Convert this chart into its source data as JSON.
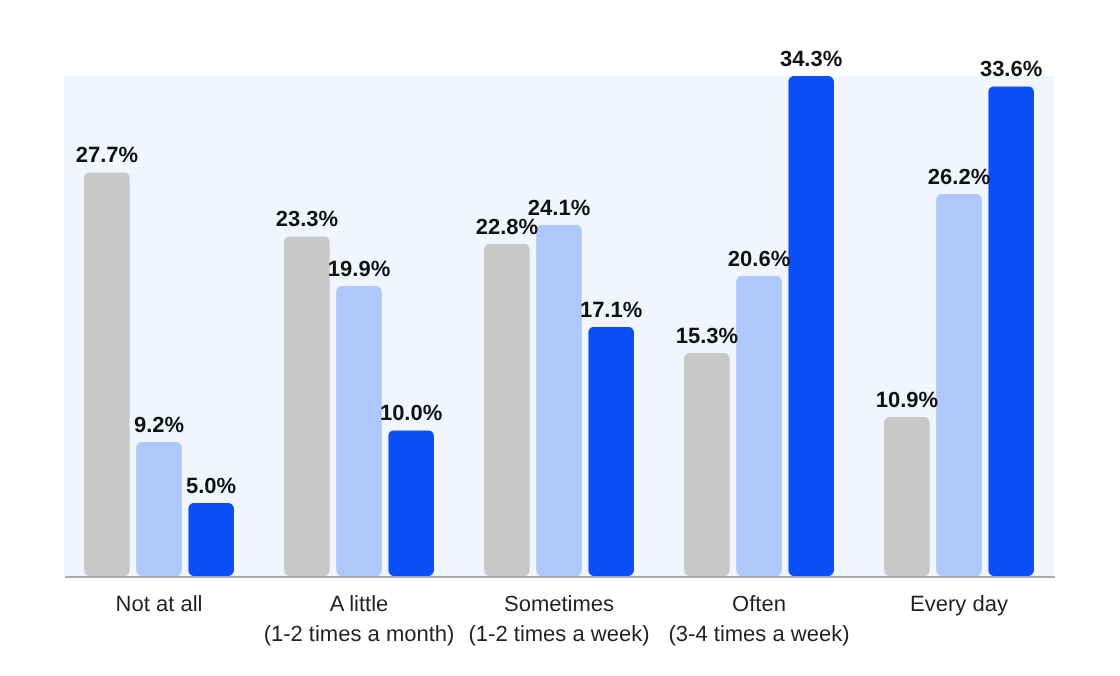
{
  "chart_data": {
    "type": "bar",
    "categories": [
      "Not at all",
      "A little\n(1-2 times a month)",
      "Sometimes\n(1-2 times a week)",
      "Often\n(3-4 times a week)",
      "Every day"
    ],
    "series": [
      {
        "color": "#c8c8c8",
        "values": [
          27.7,
          23.3,
          22.8,
          15.3,
          10.9
        ],
        "value_labels": [
          "27.7%",
          "23.3%",
          "22.8%",
          "15.3%",
          "10.9%"
        ]
      },
      {
        "color": "#aec8fa",
        "values": [
          9.2,
          19.9,
          24.1,
          20.6,
          26.2
        ],
        "value_labels": [
          "9.2%",
          "19.9%",
          "24.1%",
          "20.6%",
          "26.2%"
        ]
      },
      {
        "color": "#0a4ff5",
        "values": [
          5.0,
          10.0,
          17.1,
          34.3,
          33.6
        ],
        "value_labels": [
          "5.0%",
          "10.0%",
          "17.1%",
          "34.3%",
          "33.6%"
        ]
      }
    ],
    "grid": false,
    "legend": false
  }
}
